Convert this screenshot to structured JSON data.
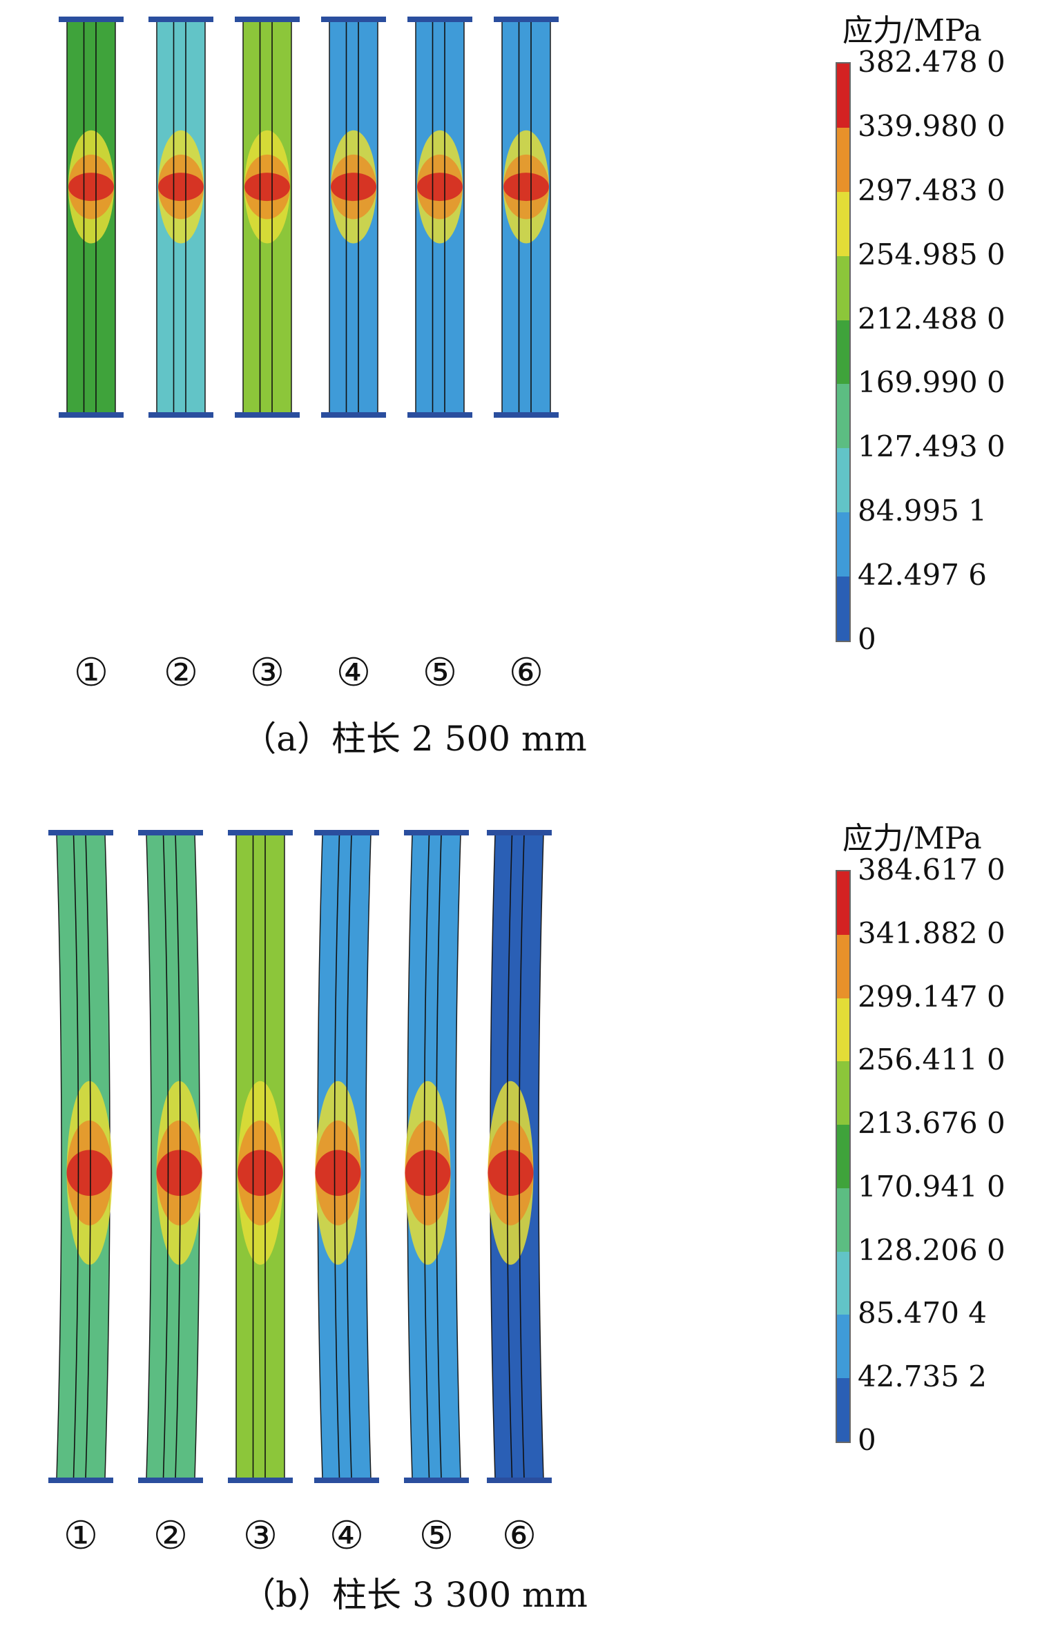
{
  "panels": [
    {
      "caption": "（a）柱长 2 500 mm",
      "legend_title": "应力/MPa",
      "legend_ticks": [
        "382.478 0",
        "339.980 0",
        "297.483 0",
        "254.985 0",
        "212.488 0",
        "169.990 0",
        "127.493 0",
        "84.995 1",
        "42.497 6",
        "0"
      ],
      "columns": [
        "①",
        "②",
        "③",
        "④",
        "⑤",
        "⑥"
      ]
    },
    {
      "caption": "（b）柱长 3 300 mm",
      "legend_title": "应力/MPa",
      "legend_ticks": [
        "384.617 0",
        "341.882 0",
        "299.147 0",
        "256.411 0",
        "213.676 0",
        "170.941 0",
        "128.206 0",
        "85.470 4",
        "42.735 2",
        "0"
      ],
      "columns": [
        "①",
        "②",
        "③",
        "④",
        "⑤",
        "⑥"
      ]
    }
  ],
  "legend_colors": [
    "#d42222",
    "#e8912a",
    "#e3dd37",
    "#8cc63a",
    "#3fa33b",
    "#5cbd82",
    "#62c4c7",
    "#3f9bd8",
    "#2a5fb5"
  ],
  "column_base_colors": {
    "a": [
      "#3fa33b",
      "#62c4c7",
      "#8cc63a",
      "#3f9bd8",
      "#3f9bd8",
      "#3f9bd8"
    ],
    "b": [
      "#5cbd82",
      "#5cbd82",
      "#8cc63a",
      "#3f9bd8",
      "#3f9bd8",
      "#2a5fb5"
    ]
  }
}
